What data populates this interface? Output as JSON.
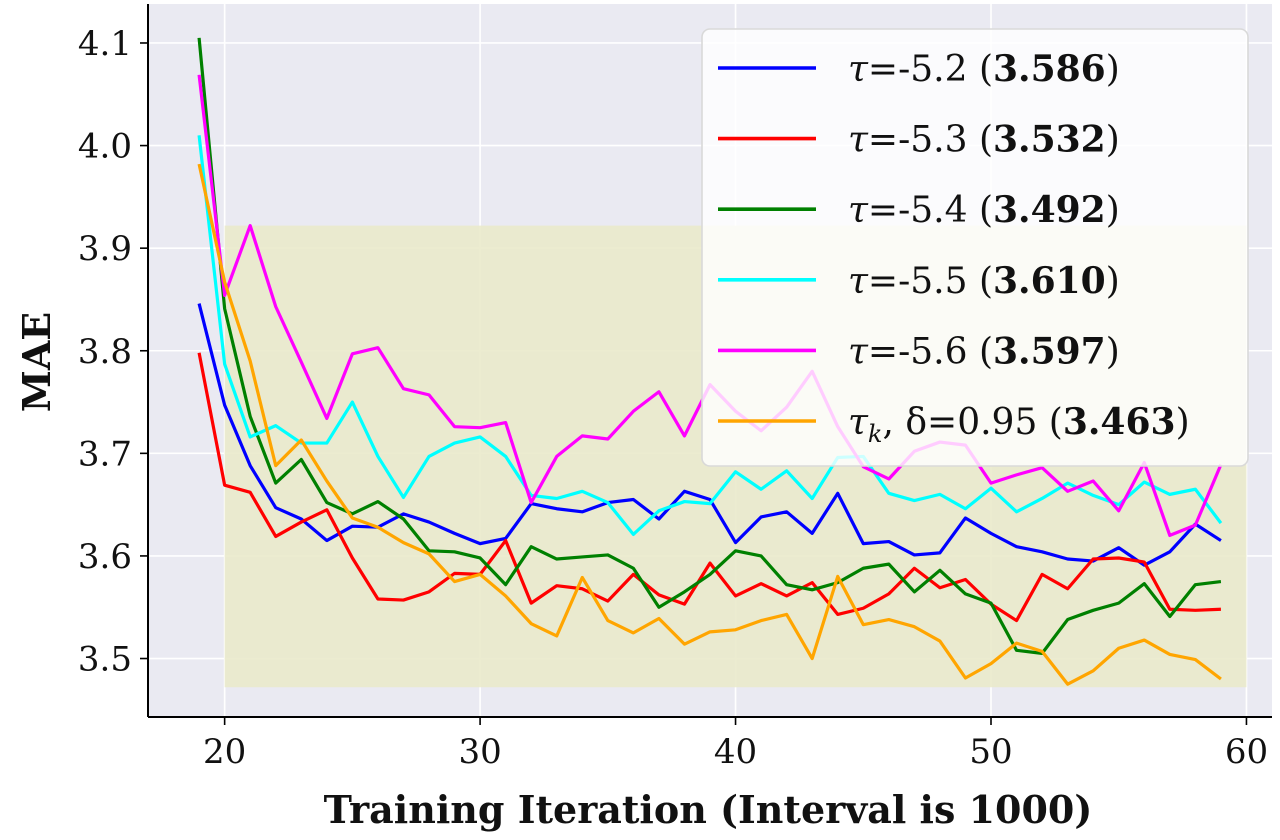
{
  "chart_data": {
    "type": "line",
    "xlabel": "Training Iteration (Interval is 1000)",
    "ylabel": "MAE",
    "xlim": [
      17,
      61
    ],
    "ylim": [
      3.443,
      4.138
    ],
    "xticks": [
      20,
      30,
      40,
      50,
      60
    ],
    "yticks": [
      3.5,
      3.6,
      3.7,
      3.8,
      3.9,
      4.0,
      4.1
    ],
    "xtick_labels": [
      "20",
      "30",
      "40",
      "50",
      "60"
    ],
    "ytick_labels": [
      "3.5",
      "3.6",
      "3.7",
      "3.8",
      "3.9",
      "4.0",
      "4.1"
    ],
    "grid": true,
    "legend_position": "top-right",
    "highlight_region": {
      "x": [
        20,
        60
      ],
      "y": [
        3.472,
        3.922
      ],
      "color": "#eaeacb"
    },
    "colors": {
      "background": "#eaeaf2",
      "grid": "#ffffff"
    },
    "x": [
      19,
      20,
      21,
      22,
      23,
      24,
      25,
      26,
      27,
      28,
      29,
      30,
      31,
      32,
      33,
      34,
      35,
      36,
      37,
      38,
      39,
      40,
      41,
      42,
      43,
      44,
      45,
      46,
      47,
      48,
      49,
      50,
      51,
      52,
      53,
      54,
      55,
      56,
      57,
      58,
      59
    ],
    "series": [
      {
        "name": "τ=-5.2",
        "label_sym": "τ",
        "label_rest": "=-5.2 (",
        "score": "3.586",
        "label_close": ")",
        "color": "#0000ff",
        "values": [
          3.846,
          3.747,
          3.688,
          3.647,
          3.636,
          3.615,
          3.629,
          3.628,
          3.641,
          3.633,
          3.622,
          3.612,
          3.617,
          3.651,
          3.646,
          3.643,
          3.652,
          3.655,
          3.636,
          3.663,
          3.655,
          3.613,
          3.638,
          3.643,
          3.622,
          3.661,
          3.612,
          3.614,
          3.601,
          3.603,
          3.637,
          3.622,
          3.609,
          3.604,
          3.597,
          3.595,
          3.608,
          3.591,
          3.604,
          3.631,
          3.615
        ]
      },
      {
        "name": "τ=-5.3",
        "label_sym": "τ",
        "label_rest": "=-5.3 (",
        "score": "3.532",
        "label_close": ")",
        "color": "#ff0000",
        "values": [
          3.798,
          3.669,
          3.662,
          3.619,
          3.633,
          3.645,
          3.598,
          3.558,
          3.557,
          3.565,
          3.583,
          3.582,
          3.615,
          3.554,
          3.571,
          3.568,
          3.556,
          3.582,
          3.562,
          3.553,
          3.593,
          3.561,
          3.573,
          3.561,
          3.574,
          3.543,
          3.549,
          3.563,
          3.588,
          3.569,
          3.577,
          3.553,
          3.537,
          3.582,
          3.568,
          3.597,
          3.598,
          3.594,
          3.548,
          3.547,
          3.548
        ]
      },
      {
        "name": "τ=-5.4",
        "label_sym": "τ",
        "label_rest": "=-5.4 (",
        "score": "3.492",
        "label_close": ")",
        "color": "#008000",
        "values": [
          4.105,
          3.841,
          3.736,
          3.671,
          3.694,
          3.652,
          3.641,
          3.653,
          3.636,
          3.605,
          3.604,
          3.598,
          3.572,
          3.609,
          3.597,
          3.599,
          3.601,
          3.588,
          3.55,
          3.565,
          3.582,
          3.605,
          3.6,
          3.572,
          3.567,
          3.574,
          3.588,
          3.592,
          3.565,
          3.586,
          3.563,
          3.554,
          3.508,
          3.505,
          3.538,
          3.547,
          3.554,
          3.573,
          3.541,
          3.572,
          3.575
        ]
      },
      {
        "name": "τ=-5.5",
        "label_sym": "τ",
        "label_rest": "=-5.5 (",
        "score": "3.610",
        "label_close": ")",
        "color": "#00ffff",
        "values": [
          4.01,
          3.787,
          3.716,
          3.727,
          3.71,
          3.71,
          3.75,
          3.697,
          3.657,
          3.697,
          3.71,
          3.716,
          3.697,
          3.659,
          3.656,
          3.663,
          3.652,
          3.621,
          3.644,
          3.653,
          3.651,
          3.682,
          3.665,
          3.683,
          3.656,
          3.696,
          3.697,
          3.661,
          3.654,
          3.66,
          3.646,
          3.666,
          3.643,
          3.656,
          3.671,
          3.659,
          3.65,
          3.672,
          3.66,
          3.665,
          3.632
        ]
      },
      {
        "name": "τ=-5.6",
        "label_sym": "τ",
        "label_rest": "=-5.6 (",
        "score": "3.597",
        "label_close": ")",
        "color": "#ff00ff",
        "values": [
          4.069,
          3.854,
          3.922,
          3.843,
          3.789,
          3.734,
          3.797,
          3.803,
          3.763,
          3.757,
          3.726,
          3.725,
          3.73,
          3.652,
          3.697,
          3.717,
          3.714,
          3.741,
          3.76,
          3.717,
          3.767,
          3.741,
          3.722,
          3.745,
          3.78,
          3.726,
          3.687,
          3.675,
          3.702,
          3.711,
          3.708,
          3.671,
          3.679,
          3.686,
          3.663,
          3.673,
          3.644,
          3.691,
          3.62,
          3.63,
          3.689
        ]
      },
      {
        "name": "τk, δ=0.95",
        "label_sym": "τ",
        "label_sub": "k",
        "label_rest": ", δ=0.95 (",
        "score": "3.463",
        "label_close": ")",
        "color": "#ffa500",
        "values": [
          3.982,
          3.867,
          3.79,
          3.688,
          3.713,
          3.673,
          3.637,
          3.628,
          3.613,
          3.602,
          3.575,
          3.582,
          3.561,
          3.534,
          3.522,
          3.579,
          3.537,
          3.525,
          3.539,
          3.514,
          3.526,
          3.528,
          3.537,
          3.543,
          3.5,
          3.58,
          3.533,
          3.538,
          3.531,
          3.517,
          3.481,
          3.495,
          3.515,
          3.507,
          3.475,
          3.488,
          3.51,
          3.518,
          3.504,
          3.499,
          3.48
        ]
      }
    ]
  }
}
